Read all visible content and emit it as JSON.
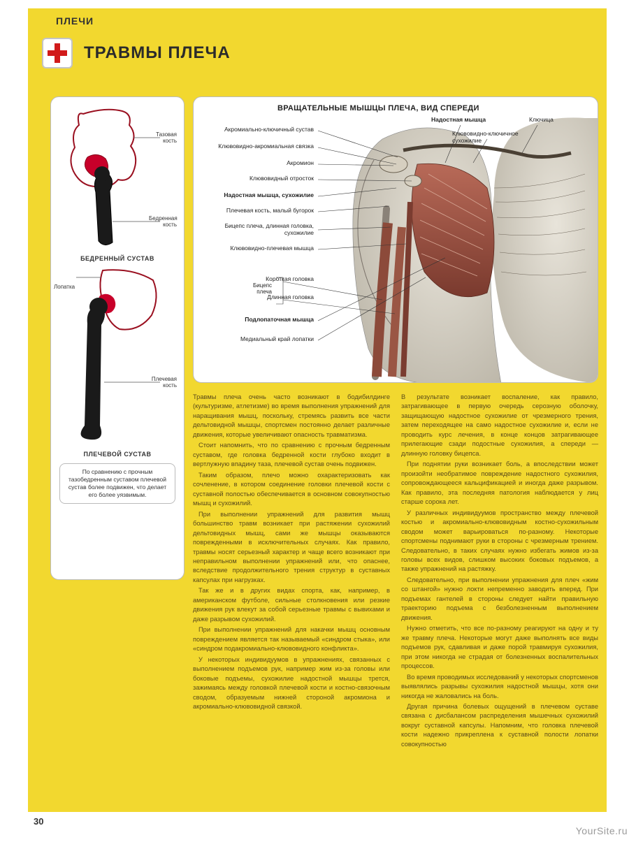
{
  "section": "ПЛЕЧИ",
  "title": "ТРАВМЫ ПЛЕЧА",
  "colors": {
    "page_bg": "#f2d82f",
    "accent_red": "#c8002a",
    "bone_black": "#1a1a1a",
    "text_body": "#5a4a1a"
  },
  "left_panel": {
    "hip": {
      "labels": {
        "pelvis": "Тазовая кость",
        "femur": "Бедренная кость"
      },
      "caption": "БЕДРЕННЫЙ СУСТАВ"
    },
    "scapula_label": "Лопатка",
    "shoulder": {
      "labels": {
        "humerus": "Плечевая кость"
      },
      "caption": "ПЛЕЧЕВОЙ СУСТАВ"
    },
    "note": "По сравнению с прочным тазобедренным суставом плечевой сустав более подвижен, что делает его более уязвимым."
  },
  "main_panel": {
    "title": "ВРАЩАТЕЛЬНЫЕ МЫШЦЫ ПЛЕЧА, ВИД СПЕРЕДИ",
    "right_top": {
      "supra": "Надостная мышца",
      "clavicle": "Ключица",
      "cc_lig": "Клювовидно-ключичное сухожилие"
    },
    "left_labels": [
      {
        "t": "Акромиально-ключичный сустав",
        "bold": false
      },
      {
        "t": "Клювовидно-акромиальная связка",
        "bold": false
      },
      {
        "t": "Акромион",
        "bold": false
      },
      {
        "t": "Клювовидный отросток",
        "bold": false
      },
      {
        "t": "Надостная мышца, сухожилие",
        "bold": true
      },
      {
        "t": "Плечевая кость, малый бугорок",
        "bold": false
      },
      {
        "t": "Бицепс плеча, длинная головка, сухожилие",
        "bold": false
      },
      {
        "t": "Клювовидно-плечевая мышца",
        "bold": false
      }
    ],
    "biceps_group": {
      "label": "Бицепс плеча",
      "short": "Короткая головка",
      "long": "Длинная головка"
    },
    "lower_left": [
      {
        "t": "Подлопаточная мышца",
        "bold": true
      },
      {
        "t": "Медиальный край лопатки",
        "bold": false
      }
    ]
  },
  "body": {
    "col1": [
      "Травмы плеча очень часто возникают в бодибилдинге (культуризме, атлетизме) во время выполнения упражнений для наращивания мышц, поскольку, стремясь развить все части дельтовидной мышцы, спортсмен постоянно делает различные движения, которые увеличивают опасность травматизма.",
      "Стоит напомнить, что по сравнению с прочным бедренным суставом, где головка бедренной кости глубоко входит в вертлужную впадину таза, плечевой сустав очень подвижен.",
      "Таким образом, плечо можно охарактеризовать как сочленение, в котором соединение головки плечевой кости с суставной полостью обеспечивается в основном совокупностью мышц и сухожилий.",
      "При выполнении упражнений для развития мышц большинство травм возникает при растяжении сухожилий дельтовидных мышц, сами же мышцы оказываются поврежденными в исключительных случаях. Как правило, травмы носят серьезный характер и чаще всего возникают при неправильном выполнении упражнений или, что опаснее, вследствие продолжительного трения структур в суставных капсулах при нагрузках.",
      "Так же и в других видах спорта, как, например, в американском футболе, сильные столкновения или резкие движения рук влекут за собой серьезные травмы с вывихами и даже разрывом сухожилий.",
      "При выполнении упражнений для накачки мышц основным повреждением является так называемый «синдром стыка», или «синдром подакромиально-клювовидного конфликта».",
      "У некоторых индивидуумов в упражнениях, связанных с выполнением подъемов рук, например жим из-за головы или боковые подъемы, сухожилие надостной мышцы трется, зажимаясь между головкой плечевой кости и костно-связочным сводом, образуемым нижней стороной акромиона и акромиально-клювовидной связкой."
    ],
    "col2": [
      "В результате возникает воспаление, как правило, затрагивающее в первую очередь серозную оболочку, защищающую надостное сухожилие от чрезмерного трения, затем переходящее на само надостное сухожилие и, если не проводить курс лечения, в конце концов затрагивающее прилегающие сзади подостные сухожилия, а спереди — длинную головку бицепса.",
      "При поднятии руки возникает боль, а впоследствии может произойти необратимое повреждение надостного сухожилия, сопровождающееся кальцификацией и иногда даже разрывом. Как правило, эта последняя патология наблюдается у лиц старше сорока лет.",
      "У различных индивидуумов пространство между плечевой костью и акромиально-клювовидным костно-сухожильным сводом может варьироваться по-разному. Некоторые спортсмены поднимают руки в стороны с чрезмерным трением. Следовательно, в таких случаях нужно избегать жимов из-за головы всех видов, слишком высоких боковых подъемов, а также упражнений на растяжку.",
      "Следовательно, при выполнении упражнения для плеч «жим со штангой» нужно локти непременно заводить вперед. При подъемах гантелей в стороны следует найти правильную траекторию подъема с безболезненным выполнением движения.",
      "Нужно отметить, что все по-разному реагируют на одну и ту же травму плеча. Некоторые могут даже выполнять все виды подъемов рук, сдавливая и даже порой травмируя сухожилия, при этом никогда не страдая от болезненных воспалительных процессов.",
      "Во время проводимых исследований у некоторых спортсменов выявлялись разрывы сухожилия надостной мышцы, хотя они никогда не жаловались на боль.",
      "Другая причина болевых ощущений в плечевом суставе связана с дисбалансом распределения мышечных сухожилий вокруг суставной капсулы. Напомним, что головка плечевой кости надежно прикреплена к суставной полости лопатки совокупностью"
    ]
  },
  "page_number": "30",
  "watermark": "YourSite.ru"
}
